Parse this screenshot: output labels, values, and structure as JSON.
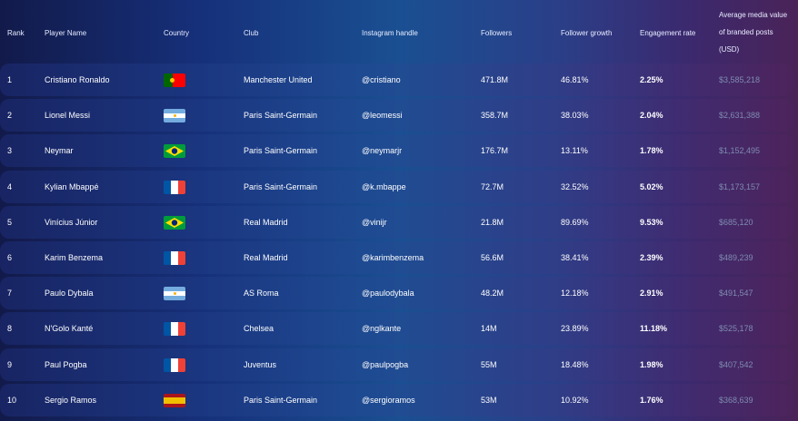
{
  "headers": {
    "rank": "Rank",
    "player": "Player Name",
    "country": "Country",
    "club": "Club",
    "instagram": "Instagram handle",
    "followers": "Followers",
    "growth": "Follower growth",
    "engagement": "Engagement rate",
    "value": "Average media value of branded posts (USD)"
  },
  "rows": [
    {
      "rank": "1",
      "player": "Cristiano Ronaldo",
      "flag": "portugal-flag-icon",
      "club": "Manchester United",
      "handle": "@cristiano",
      "followers": "471.8M",
      "growth": "46.81%",
      "engagement": "2.25%",
      "value": "$3,585,218"
    },
    {
      "rank": "2",
      "player": "Lionel Messi",
      "flag": "argentina-flag-icon",
      "club": "Paris Saint-Germain",
      "handle": "@leomessi",
      "followers": "358.7M",
      "growth": "38.03%",
      "engagement": "2.04%",
      "value": "$2,631,388"
    },
    {
      "rank": "3",
      "player": "Neymar",
      "flag": "brazil-flag-icon",
      "club": "Paris Saint-Germain",
      "handle": "@neymarjr",
      "followers": "176.7M",
      "growth": "13.11%",
      "engagement": "1.78%",
      "value": "$1,152,495"
    },
    {
      "rank": "4",
      "player": "Kylian Mbappé",
      "flag": "france-flag-icon",
      "club": "Paris Saint-Germain",
      "handle": "@k.mbappe",
      "followers": "72.7M",
      "growth": "32.52%",
      "engagement": "5.02%",
      "value": "$1,173,157"
    },
    {
      "rank": "5",
      "player": "Vinícius Júnior",
      "flag": "brazil-flag-icon",
      "club": "Real Madrid",
      "handle": "@vinijr",
      "followers": "21.8M",
      "growth": "89.69%",
      "engagement": "9.53%",
      "value": "$685,120"
    },
    {
      "rank": "6",
      "player": "Karim Benzema",
      "flag": "france-flag-icon",
      "club": "Real Madrid",
      "handle": "@karimbenzema",
      "followers": "56.6M",
      "growth": "38.41%",
      "engagement": "2.39%",
      "value": "$489,239"
    },
    {
      "rank": "7",
      "player": "Paulo Dybala",
      "flag": "argentina-flag-icon",
      "club": "AS Roma",
      "handle": "@paulodybala",
      "followers": "48.2M",
      "growth": "12.18%",
      "engagement": "2.91%",
      "value": "$491,547"
    },
    {
      "rank": "8",
      "player": "N'Golo Kanté",
      "flag": "france-flag-icon",
      "club": "Chelsea",
      "handle": "@nglkante",
      "followers": "14M",
      "growth": "23.89%",
      "engagement": "11.18%",
      "value": "$525,178"
    },
    {
      "rank": "9",
      "player": "Paul Pogba",
      "flag": "france-flag-icon",
      "club": "Juventus",
      "handle": "@paulpogba",
      "followers": "55M",
      "growth": "18.48%",
      "engagement": "1.98%",
      "value": "$407,542"
    },
    {
      "rank": "10",
      "player": "Sergio Ramos",
      "flag": "spain-flag-icon",
      "club": "Paris Saint-Germain",
      "handle": "@sergioramos",
      "followers": "53M",
      "growth": "10.92%",
      "engagement": "1.76%",
      "value": "$368,639"
    }
  ],
  "colors": {
    "value_text": "#7e8bb0",
    "portugal_green": "#006600",
    "portugal_red": "#ff0000",
    "argentina_blue": "#74acdf",
    "brazil_green": "#009c3b",
    "brazil_yellow": "#ffdf00",
    "brazil_blue": "#002776",
    "france_blue": "#0055a4",
    "france_red": "#ef4135",
    "spain_red": "#aa151b",
    "spain_yellow": "#f1bf00"
  }
}
